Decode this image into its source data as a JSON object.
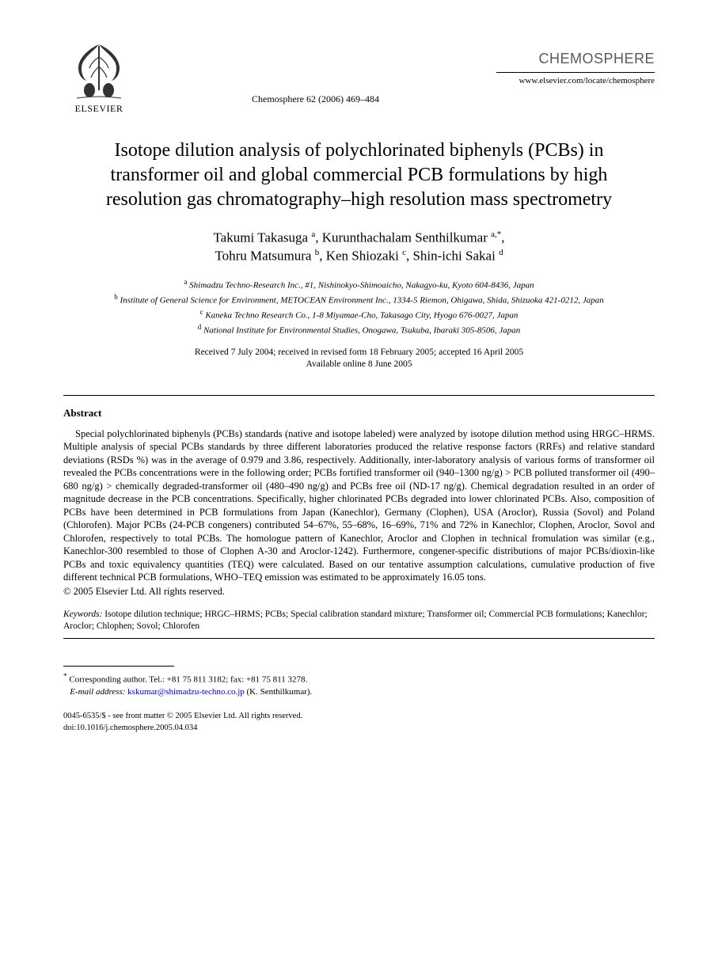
{
  "header": {
    "publisher": "ELSEVIER",
    "journal_ref": "Chemosphere 62 (2006) 469–484",
    "journal_name": "CHEMOSPHERE",
    "journal_url": "www.elsevier.com/locate/chemosphere"
  },
  "title": "Isotope dilution analysis of polychlorinated biphenyls (PCBs) in transformer oil and global commercial PCB formulations by high resolution gas chromatography–high resolution mass spectrometry",
  "authors_html": "Takumi Takasuga <sup>a</sup>, Kurunthachalam Senthilkumar <sup>a,*</sup>,<br>Tohru Matsumura <sup>b</sup>, Ken Shiozaki <sup>c</sup>, Shin-ichi Sakai <sup>d</sup>",
  "affiliations": [
    {
      "key": "a",
      "text": "Shimadzu Techno-Research Inc., #1, Nishinokyo-Shimoaicho, Nakagyo-ku, Kyoto 604-8436, Japan"
    },
    {
      "key": "b",
      "text": "Institute of General Science for Environment, METOCEAN Environment Inc., 1334-5 Riemon, Ohigawa, Shida, Shizuoka 421-0212, Japan"
    },
    {
      "key": "c",
      "text": "Kaneka Techno Research Co., 1-8 Miyamae-Cho, Takasago City, Hyogo 676-0027, Japan"
    },
    {
      "key": "d",
      "text": "National Institute for Environmental Studies, Onogawa, Tsukuba, Ibaraki 305-8506, Japan"
    }
  ],
  "dates": {
    "received": "Received 7 July 2004; received in revised form 18 February 2005; accepted 16 April 2005",
    "online": "Available online 8 June 2005"
  },
  "abstract": {
    "heading": "Abstract",
    "body": "Special polychlorinated biphenyls (PCBs) standards (native and isotope labeled) were analyzed by isotope dilution method using HRGC–HRMS. Multiple analysis of special PCBs standards by three different laboratories produced the relative response factors (RRFs) and relative standard deviations (RSDs %) was in the average of 0.979 and 3.86, respectively. Additionally, inter-laboratory analysis of various forms of transformer oil revealed the PCBs concentrations were in the following order; PCBs fortified transformer oil (940–1300 ng/g) > PCB polluted transformer oil (490–680 ng/g) > chemically degraded-transformer oil (480–490 ng/g) and PCBs free oil (ND-17 ng/g). Chemical degradation resulted in an order of magnitude decrease in the PCB concentrations. Specifically, higher chlorinated PCBs degraded into lower chlorinated PCBs. Also, composition of PCBs have been determined in PCB formulations from Japan (Kanechlor), Germany (Clophen), USA (Aroclor), Russia (Sovol) and Poland (Chlorofen). Major PCBs (24-PCB congeners) contributed 54–67%, 55–68%, 16–69%, 71% and 72% in Kanechlor, Clophen, Aroclor, Sovol and Chlorofen, respectively to total PCBs. The homologue pattern of Kanechlor, Aroclor and Clophen in technical fromulation was similar (e.g., Kanechlor-300 resembled to those of Clophen A-30 and Aroclor-1242). Furthermore, congener-specific distributions of major PCBs/dioxin-like PCBs and toxic equivalency quantities (TEQ) were calculated. Based on our tentative assumption calculations, cumulative production of five different technical PCB formulations, WHO–TEQ emission was estimated to be approximately 16.05 tons.",
    "copyright": "© 2005 Elsevier Ltd. All rights reserved."
  },
  "keywords": {
    "label": "Keywords:",
    "text": "Isotope dilution technique; HRGC–HRMS; PCBs; Special calibration standard mixture; Transformer oil; Commercial PCB formulations; Kanechlor; Aroclor; Chlophen; Sovol; Chlorofen"
  },
  "footnote": {
    "corr": "Corresponding author. Tel.: +81 75 811 3182; fax: +81 75 811 3278.",
    "email_label": "E-mail address:",
    "email": "kskumar@shimadzu-techno.co.jp",
    "email_suffix": "(K. Senthilkumar)."
  },
  "bottom": {
    "line1": "0045-6535/$ - see front matter © 2005 Elsevier Ltd. All rights reserved.",
    "line2": "doi:10.1016/j.chemosphere.2005.04.034"
  },
  "colors": {
    "text": "#000000",
    "background": "#ffffff",
    "journal_name": "#5a5a5a",
    "link": "#0000cc"
  }
}
